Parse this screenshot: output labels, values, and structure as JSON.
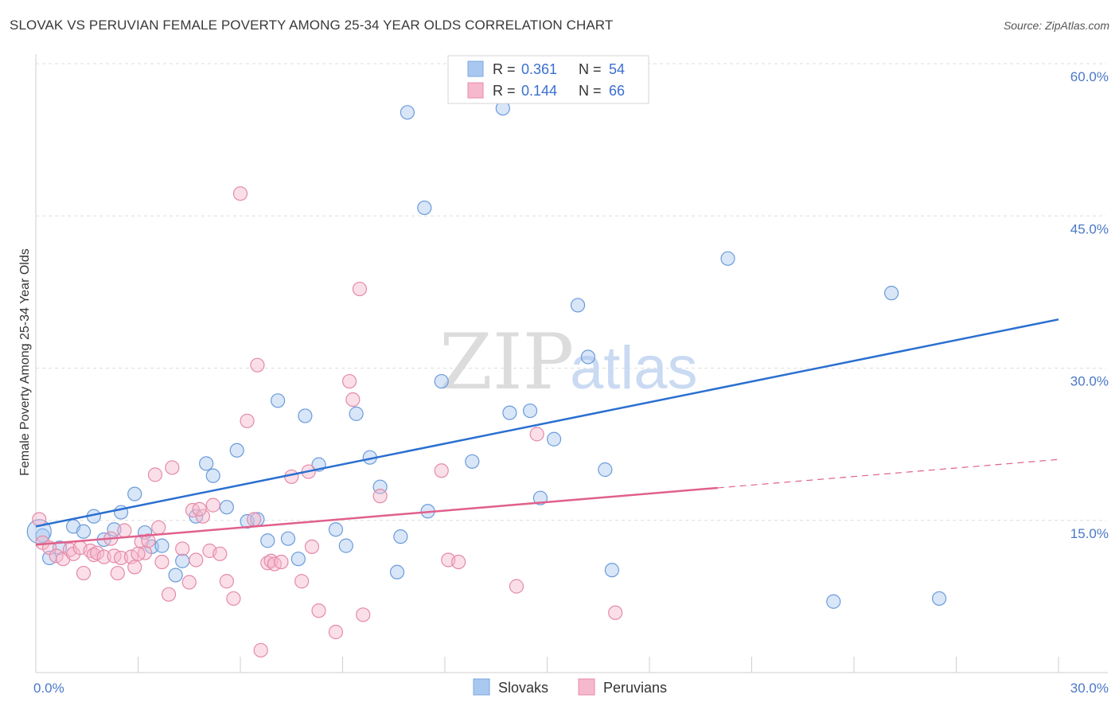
{
  "title": "SLOVAK VS PERUVIAN FEMALE POVERTY AMONG 25-34 YEAR OLDS CORRELATION CHART",
  "source": "Source: ZipAtlas.com",
  "watermark": {
    "zip": "ZIP",
    "atlas": "atlas"
  },
  "chart_data": {
    "type": "scatter",
    "title": "SLOVAK VS PERUVIAN FEMALE POVERTY AMONG 25-34 YEAR OLDS CORRELATION CHART",
    "xlabel": "",
    "ylabel": "Female Poverty Among 25-34 Year Olds",
    "xlim": [
      0,
      30
    ],
    "ylim": [
      0,
      60
    ],
    "x_tick_labels": [
      "0.0%",
      "30.0%"
    ],
    "y_ticks": [
      15,
      30,
      45,
      60
    ],
    "y_tick_labels": [
      "15.0%",
      "30.0%",
      "45.0%",
      "60.0%"
    ],
    "grid": true,
    "legend": [
      {
        "name": "Slovaks",
        "r_label": "R =",
        "r": "0.361",
        "n_label": "N =",
        "n": "54",
        "color": "#a9c8f0",
        "edge": "#7aa6e0"
      },
      {
        "name": "Peruvians",
        "r_label": "R =",
        "r": "0.144",
        "n_label": "N =",
        "n": "66",
        "color": "#f6b8cc",
        "edge": "#e88aa8"
      }
    ],
    "series": [
      {
        "name": "Slovaks",
        "color": "#a9c8f0",
        "edge": "#6b9bdb",
        "trend": {
          "x0": 0,
          "y0": 14.4,
          "x1": 30,
          "y1": 34.8,
          "color": "#2a6fd0"
        },
        "points": [
          [
            0.2,
            13.5
          ],
          [
            0.4,
            11.3
          ],
          [
            0.7,
            12.3
          ],
          [
            1.1,
            14.4
          ],
          [
            1.4,
            13.9
          ],
          [
            1.7,
            15.4
          ],
          [
            2.0,
            13.1
          ],
          [
            2.3,
            14.1
          ],
          [
            2.5,
            15.8
          ],
          [
            2.9,
            17.6
          ],
          [
            3.2,
            13.8
          ],
          [
            3.4,
            12.4
          ],
          [
            3.7,
            12.5
          ],
          [
            4.1,
            9.6
          ],
          [
            4.3,
            11.0
          ],
          [
            4.7,
            15.4
          ],
          [
            5.0,
            20.6
          ],
          [
            5.2,
            19.4
          ],
          [
            5.6,
            16.3
          ],
          [
            5.9,
            21.9
          ],
          [
            6.2,
            14.9
          ],
          [
            6.5,
            15.1
          ],
          [
            6.8,
            13.0
          ],
          [
            7.1,
            26.8
          ],
          [
            7.4,
            13.2
          ],
          [
            7.7,
            11.2
          ],
          [
            7.9,
            25.3
          ],
          [
            8.3,
            20.5
          ],
          [
            8.8,
            14.1
          ],
          [
            9.1,
            12.5
          ],
          [
            9.4,
            25.5
          ],
          [
            9.8,
            21.2
          ],
          [
            10.1,
            18.3
          ],
          [
            10.6,
            9.9
          ],
          [
            10.7,
            13.4
          ],
          [
            10.9,
            55.2
          ],
          [
            11.4,
            45.8
          ],
          [
            11.5,
            15.9
          ],
          [
            11.9,
            28.7
          ],
          [
            12.8,
            20.8
          ],
          [
            13.7,
            55.6
          ],
          [
            13.9,
            25.6
          ],
          [
            14.5,
            25.8
          ],
          [
            14.8,
            17.2
          ],
          [
            15.2,
            23.0
          ],
          [
            15.9,
            36.2
          ],
          [
            16.2,
            31.1
          ],
          [
            16.7,
            20.0
          ],
          [
            16.9,
            10.1
          ],
          [
            20.3,
            40.8
          ],
          [
            23.4,
            7.0
          ],
          [
            25.1,
            37.4
          ],
          [
            26.5,
            7.3
          ],
          [
            0.1,
            13.9
          ]
        ]
      },
      {
        "name": "Peruvians",
        "color": "#f6b8cc",
        "edge": "#e48aa8",
        "trend": {
          "x0": 0,
          "y0": 12.6,
          "x1": 20.0,
          "y1": 18.2,
          "dash_x1": 30,
          "dash_y1": 21.0,
          "color": "#e0608c"
        },
        "points": [
          [
            0.1,
            15.1
          ],
          [
            0.2,
            12.8
          ],
          [
            0.4,
            12.3
          ],
          [
            0.6,
            11.5
          ],
          [
            0.8,
            11.2
          ],
          [
            1.0,
            12.1
          ],
          [
            1.1,
            11.7
          ],
          [
            1.3,
            12.3
          ],
          [
            1.4,
            9.8
          ],
          [
            1.6,
            12.0
          ],
          [
            1.7,
            11.6
          ],
          [
            1.8,
            11.8
          ],
          [
            2.0,
            11.4
          ],
          [
            2.2,
            13.2
          ],
          [
            2.3,
            11.5
          ],
          [
            2.4,
            9.8
          ],
          [
            2.5,
            11.3
          ],
          [
            2.6,
            14.0
          ],
          [
            2.8,
            11.4
          ],
          [
            2.9,
            10.4
          ],
          [
            3.1,
            12.9
          ],
          [
            3.2,
            11.8
          ],
          [
            3.3,
            13.0
          ],
          [
            3.5,
            19.5
          ],
          [
            3.6,
            14.3
          ],
          [
            3.7,
            10.9
          ],
          [
            3.9,
            7.7
          ],
          [
            4.0,
            20.2
          ],
          [
            4.3,
            12.2
          ],
          [
            4.5,
            8.9
          ],
          [
            4.6,
            16.0
          ],
          [
            4.7,
            11.1
          ],
          [
            4.9,
            15.4
          ],
          [
            5.1,
            12.0
          ],
          [
            5.2,
            16.5
          ],
          [
            5.4,
            11.7
          ],
          [
            5.6,
            9.0
          ],
          [
            5.8,
            7.3
          ],
          [
            6.0,
            47.2
          ],
          [
            6.2,
            24.8
          ],
          [
            6.4,
            15.1
          ],
          [
            6.5,
            30.3
          ],
          [
            6.6,
            2.2
          ],
          [
            6.8,
            10.8
          ],
          [
            6.9,
            11.0
          ],
          [
            7.0,
            10.7
          ],
          [
            7.2,
            10.9
          ],
          [
            7.5,
            19.3
          ],
          [
            7.8,
            9.0
          ],
          [
            8.0,
            19.8
          ],
          [
            8.1,
            12.4
          ],
          [
            8.3,
            6.1
          ],
          [
            8.8,
            4.0
          ],
          [
            9.2,
            28.7
          ],
          [
            9.3,
            26.9
          ],
          [
            9.5,
            37.8
          ],
          [
            9.6,
            5.7
          ],
          [
            10.1,
            17.4
          ],
          [
            11.9,
            19.9
          ],
          [
            12.1,
            11.1
          ],
          [
            12.4,
            10.9
          ],
          [
            14.1,
            8.5
          ],
          [
            14.7,
            23.5
          ],
          [
            17.0,
            5.9
          ],
          [
            4.8,
            16.1
          ],
          [
            3.0,
            11.7
          ]
        ]
      }
    ]
  }
}
